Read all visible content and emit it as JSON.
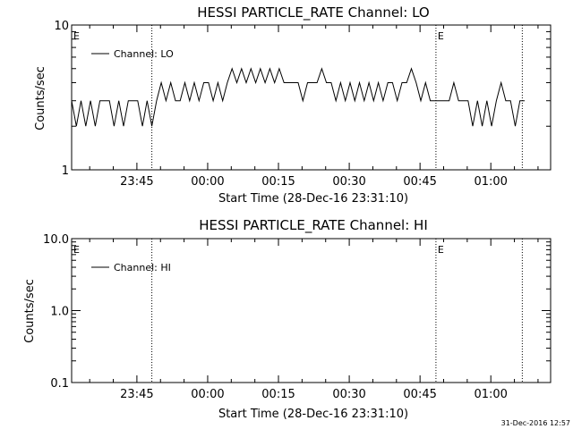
{
  "footer": {
    "timestamp": "31-Dec-2016 12:57"
  },
  "chart_data": [
    {
      "type": "line",
      "title": "HESSI PARTICLE_RATE Channel: LO",
      "xlabel": "Start Time (28-Dec-16 23:31:10)",
      "ylabel": "Counts/sec",
      "yscale": "log",
      "ylim": [
        1,
        10
      ],
      "ytick_labels": [
        "1",
        "10"
      ],
      "xlim_minutes": [
        0,
        101.5
      ],
      "xtick_labels": [
        "23:45",
        "00:00",
        "00:15",
        "00:30",
        "00:45",
        "01:00"
      ],
      "xtick_minutes": [
        13.83,
        28.83,
        43.83,
        58.83,
        73.83,
        88.83
      ],
      "legend": {
        "label": "Channel: LO",
        "position": "top-left"
      },
      "event_markers": {
        "label": "E",
        "minutes": [
          0,
          77.2
        ]
      },
      "dotted_lines_minutes": [
        17.0,
        77.2,
        95.5
      ],
      "series": [
        {
          "x": [
            0,
            1,
            2,
            3,
            4,
            5,
            6,
            7,
            8,
            9,
            10,
            11,
            12,
            13,
            14,
            15,
            16,
            17,
            18,
            19,
            20,
            21,
            22,
            23,
            24,
            25,
            26,
            27,
            28,
            29,
            30,
            31,
            32,
            33,
            34,
            35,
            36,
            37,
            38,
            39,
            40,
            41,
            42,
            43,
            44,
            45,
            46,
            47,
            48,
            49,
            50,
            51,
            52,
            53,
            54,
            55,
            56,
            57,
            58,
            59,
            60,
            61,
            62,
            63,
            64,
            65,
            66,
            67,
            68,
            69,
            70,
            71,
            72,
            73,
            74,
            75,
            76,
            77,
            78,
            79,
            80,
            81,
            82,
            83,
            84,
            85,
            86,
            87,
            88,
            89,
            90,
            91,
            92,
            93,
            94,
            95,
            96
          ],
          "values": [
            3,
            2,
            3,
            2,
            3,
            2,
            3,
            3,
            3,
            2,
            3,
            2,
            3,
            3,
            3,
            2,
            3,
            2,
            3,
            4,
            3,
            4,
            3,
            3,
            4,
            3,
            4,
            3,
            4,
            4,
            3,
            4,
            3,
            4,
            5,
            4,
            5,
            4,
            5,
            4,
            5,
            4,
            5,
            4,
            5,
            4,
            4,
            4,
            4,
            3,
            4,
            4,
            4,
            5,
            4,
            4,
            3,
            4,
            3,
            4,
            3,
            4,
            3,
            4,
            3,
            4,
            3,
            4,
            4,
            3,
            4,
            4,
            5,
            4,
            3,
            4,
            3,
            3,
            3,
            3,
            3,
            4,
            3,
            3,
            3,
            2,
            3,
            2,
            3,
            2,
            3,
            4,
            3,
            3,
            2,
            3,
            3
          ]
        }
      ]
    },
    {
      "type": "line",
      "title": "HESSI PARTICLE_RATE Channel: HI",
      "xlabel": "Start Time (28-Dec-16 23:31:10)",
      "ylabel": "Counts/sec",
      "yscale": "log",
      "ylim": [
        0.1,
        10
      ],
      "ytick_labels": [
        "0.1",
        "1.0",
        "10.0"
      ],
      "xlim_minutes": [
        0,
        101.5
      ],
      "xtick_labels": [
        "23:45",
        "00:00",
        "00:15",
        "00:30",
        "00:45",
        "01:00"
      ],
      "xtick_minutes": [
        13.83,
        28.83,
        43.83,
        58.83,
        73.83,
        88.83
      ],
      "legend": {
        "label": "Channel: HI",
        "position": "top-left"
      },
      "event_markers": {
        "label": "E",
        "minutes": [
          0,
          77.2
        ]
      },
      "dotted_lines_minutes": [
        17.0,
        77.2,
        95.5
      ],
      "series": [
        {
          "x": [],
          "values": []
        }
      ]
    }
  ]
}
